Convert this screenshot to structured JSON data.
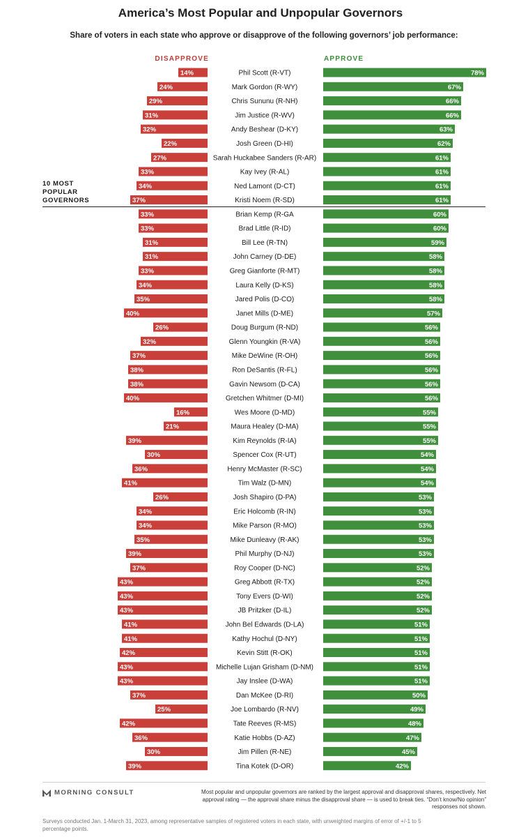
{
  "title": "America’s Most Popular and Unpopular Governors",
  "subtitle": "Share of voters in each state who approve or disapprove of the following governors’ job performance:",
  "column_headers": {
    "disapprove": "DISAPPROVE",
    "approve": "APPROVE"
  },
  "popular_label": {
    "line1": "10 MOST",
    "line2": "POPULAR",
    "line3": "GOVERNORS"
  },
  "colors": {
    "disapprove": "#c9403b",
    "approve": "#3f8f3c",
    "title": "#222222"
  },
  "logo_text": "MORNING CONSULT",
  "footnote": "Most popular and unpopular governors are ranked by the largest approval and disapproval shares, respectively. Net approval rating — the approval share minus the disapproval share — is used to break ties. “Don’t know/No opinion” responses not shown.",
  "surveys_note": "Surveys conducted Jan. 1-March 31, 2023, among representative samples of registered voters in each state, with unweighted margins of error of +/-1 to 5 percentage points.",
  "chart_data": {
    "type": "bar",
    "orientation": "horizontal diverging",
    "unit": "%",
    "categories": [
      "Phil Scott (R-VT)",
      "Mark Gordon (R-WY)",
      "Chris Sununu (R-NH)",
      "Jim Justice (R-WV)",
      "Andy Beshear (D-KY)",
      "Josh Green (D-HI)",
      "Sarah Huckabee Sanders (R-AR)",
      "Kay Ivey (R-AL)",
      "Ned Lamont (D-CT)",
      "Kristi Noem (R-SD)",
      "Brian Kemp (R-GA",
      "Brad Little (R-ID)",
      "Bill Lee (R-TN)",
      "John Carney (D-DE)",
      "Greg Gianforte (R-MT)",
      "Laura Kelly (D-KS)",
      "Jared Polis (D-CO)",
      "Janet Mills (D-ME)",
      "Doug Burgum (R-ND)",
      "Glenn Youngkin (R-VA)",
      "Mike DeWine (R-OH)",
      "Ron DeSantis (R-FL)",
      "Gavin Newsom (D-CA)",
      "Gretchen Whitmer (D-MI)",
      "Wes Moore (D-MD)",
      "Maura Healey (D-MA)",
      "Kim Reynolds (R-IA)",
      "Spencer Cox (R-UT)",
      "Henry McMaster (R-SC)",
      "Tim Walz (D-MN)",
      "Josh Shapiro (D-PA)",
      "Eric Holcomb (R-IN)",
      "Mike Parson (R-MO)",
      "Mike Dunleavy (R-AK)",
      "Phil Murphy (D-NJ)",
      "Roy Cooper (D-NC)",
      "Greg Abbott (R-TX)",
      "Tony Evers (D-WI)",
      "JB Pritzker (D-IL)",
      "John Bel Edwards (D-LA)",
      "Kathy Hochul (D-NY)",
      "Kevin Stitt (R-OK)",
      "Michelle Lujan Grisham (D-NM)",
      "Jay Inslee (D-WA)",
      "Dan McKee (D-RI)",
      "Joe Lombardo (R-NV)",
      "Tate Reeves (R-MS)",
      "Katie Hobbs (D-AZ)",
      "Jim Pillen (R-NE)",
      "Tina Kotek (D-OR)"
    ],
    "series": [
      {
        "name": "DISAPPROVE",
        "values": [
          14,
          24,
          29,
          31,
          32,
          22,
          27,
          33,
          34,
          37,
          33,
          33,
          31,
          31,
          33,
          34,
          35,
          40,
          26,
          32,
          37,
          38,
          38,
          40,
          16,
          21,
          39,
          30,
          36,
          41,
          26,
          34,
          34,
          35,
          39,
          37,
          43,
          43,
          43,
          41,
          41,
          42,
          43,
          43,
          37,
          25,
          42,
          36,
          30,
          39
        ]
      },
      {
        "name": "APPROVE",
        "values": [
          78,
          67,
          66,
          66,
          63,
          62,
          61,
          61,
          61,
          61,
          60,
          60,
          59,
          58,
          58,
          58,
          58,
          57,
          56,
          56,
          56,
          56,
          56,
          56,
          55,
          55,
          55,
          54,
          54,
          54,
          53,
          53,
          53,
          53,
          53,
          52,
          52,
          52,
          52,
          51,
          51,
          51,
          51,
          51,
          50,
          49,
          48,
          47,
          45,
          42
        ]
      }
    ],
    "value_labels_suffix": "%",
    "groups": [
      {
        "label": "10 MOST POPULAR GOVERNORS",
        "count": 10
      }
    ]
  }
}
